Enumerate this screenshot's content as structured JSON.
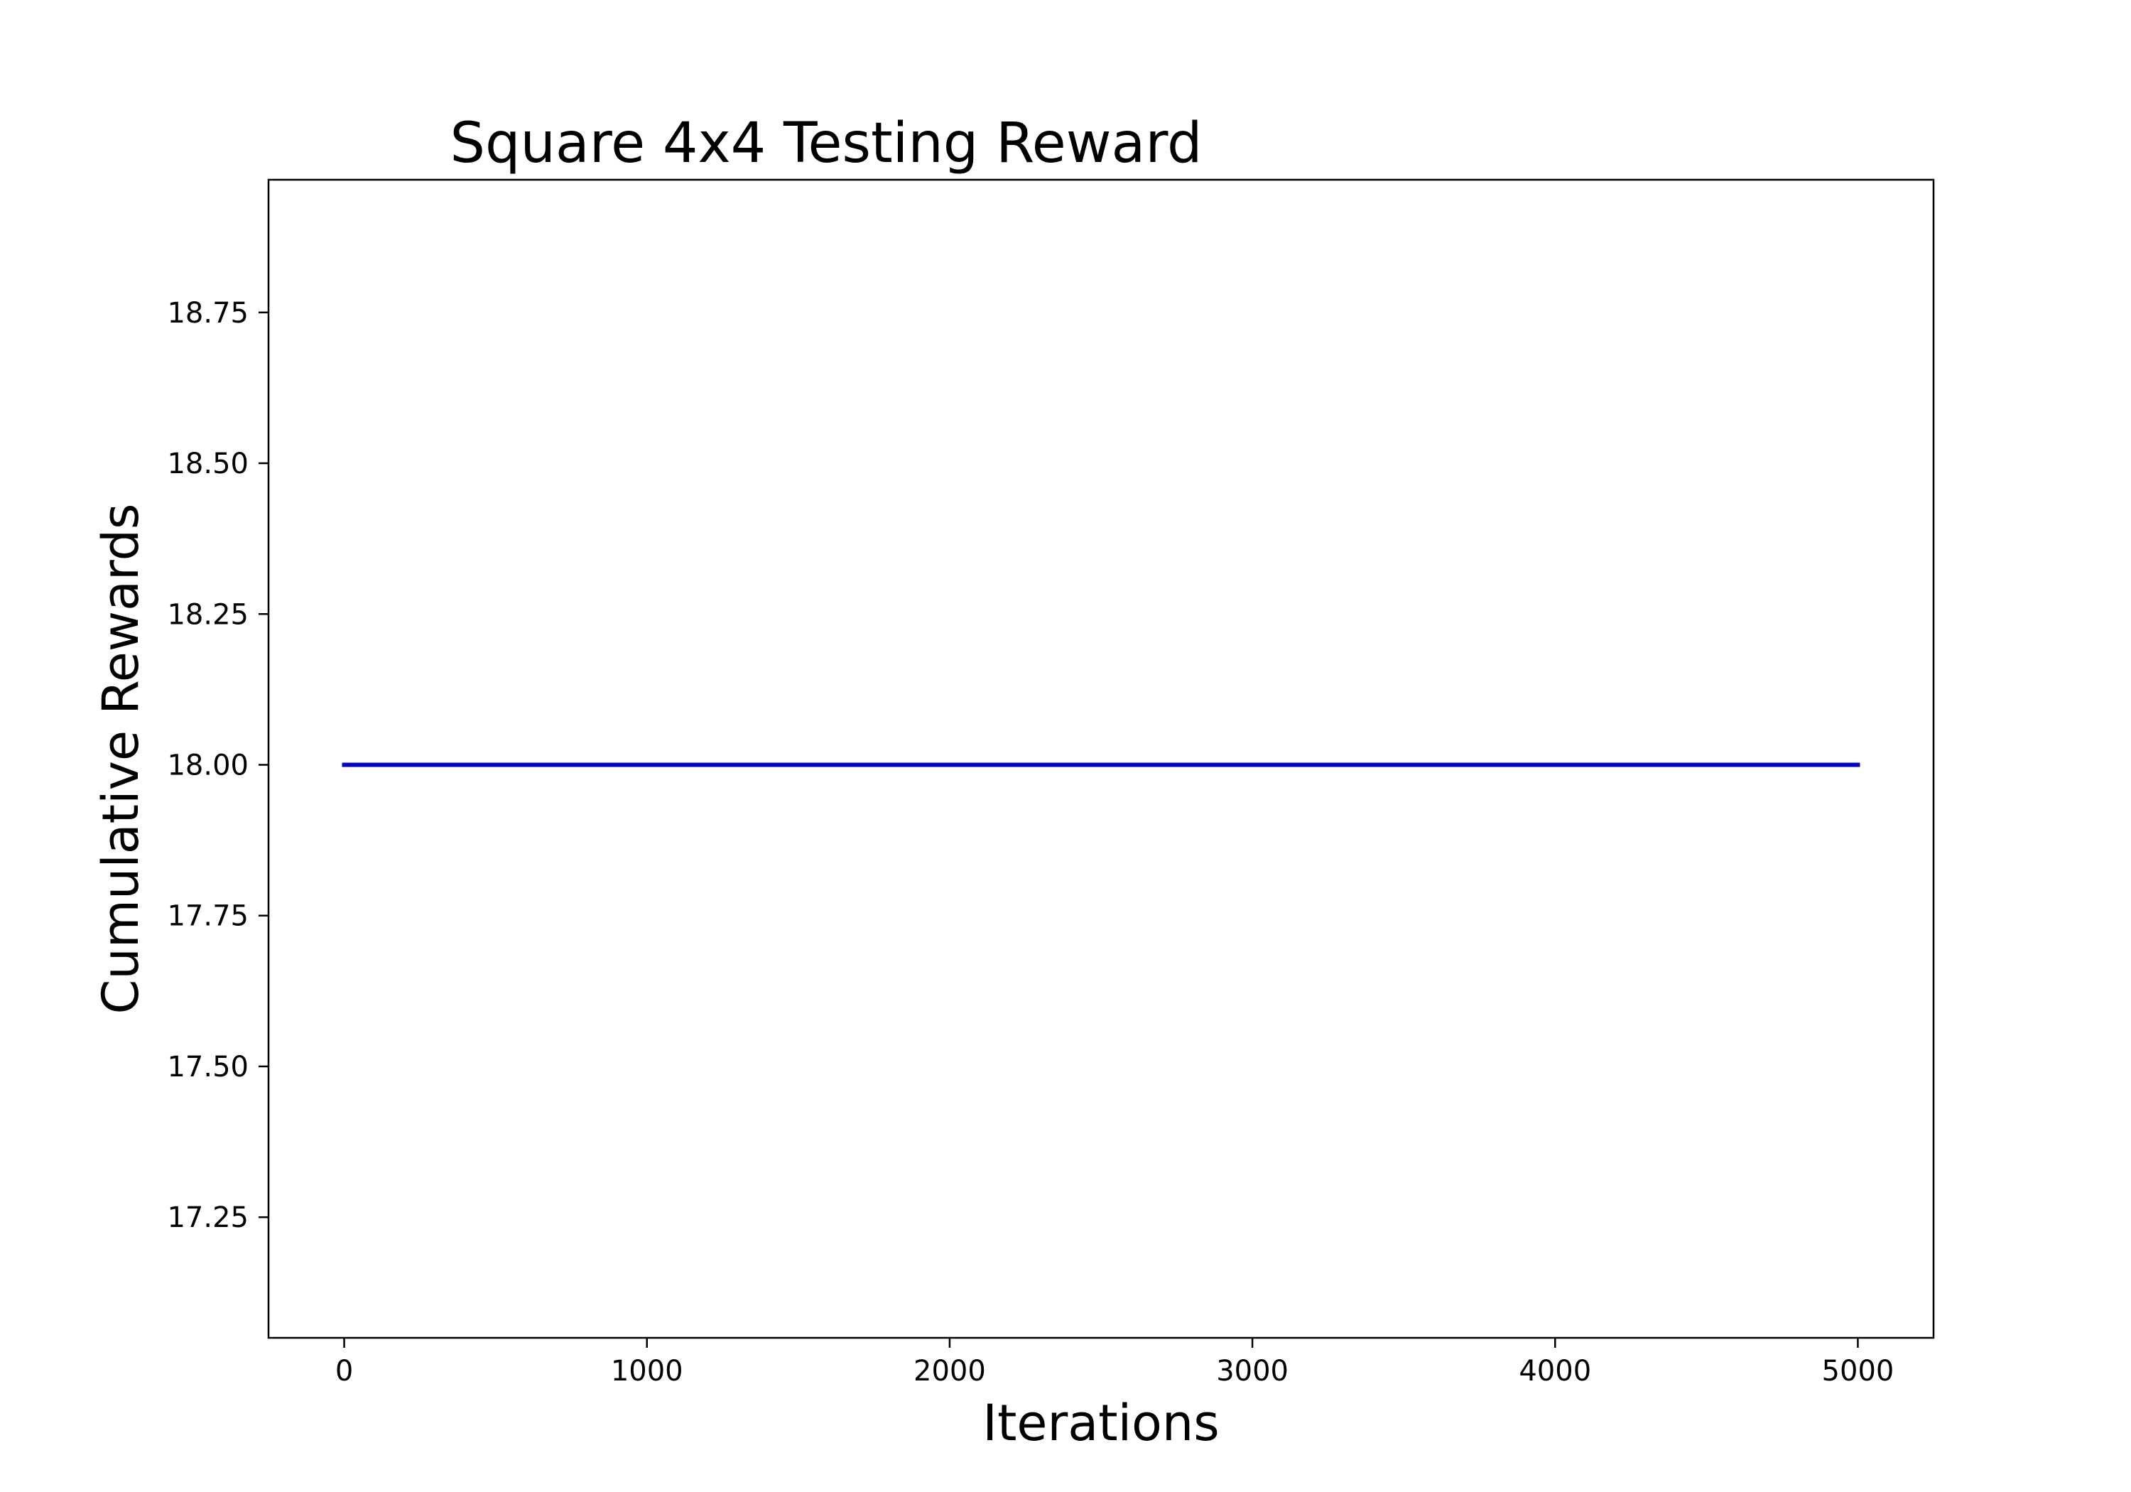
{
  "chart_data": {
    "type": "line",
    "title": "Square 4x4 Testing Reward",
    "xlabel": "Iterations",
    "ylabel": "Cumulative Rewards",
    "xlim": [
      -250,
      5250
    ],
    "ylim": [
      17.05,
      18.97
    ],
    "x_ticks": [
      0,
      1000,
      2000,
      3000,
      4000,
      5000
    ],
    "x_tick_labels": [
      "0",
      "1000",
      "2000",
      "3000",
      "4000",
      "5000"
    ],
    "y_ticks": [
      17.25,
      17.5,
      17.75,
      18.0,
      18.25,
      18.5,
      18.75
    ],
    "y_tick_labels": [
      "17.25",
      "17.50",
      "17.75",
      "18.00",
      "18.25",
      "18.50",
      "18.75"
    ],
    "grid": false,
    "series": [
      {
        "color": "#0000cc",
        "x": [
          0,
          5000
        ],
        "y": [
          18.0,
          18.0
        ]
      }
    ]
  }
}
